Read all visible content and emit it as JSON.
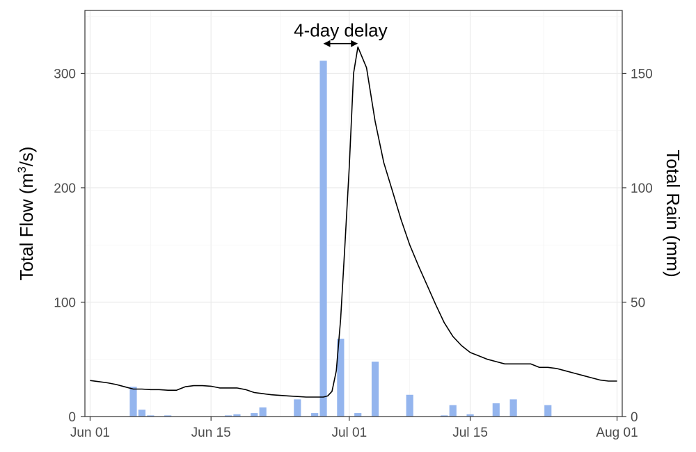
{
  "chart_data": {
    "type": "bar+line",
    "title": "",
    "ylabel_left": {
      "text": "Total Flow (m",
      "sup": "3",
      "tail": "/s)"
    },
    "ylabel_right": "Total Rain (mm)",
    "xlim": [
      -0.6,
      61.6
    ],
    "ylim_left": [
      0,
      355
    ],
    "ylim_right": [
      0,
      177.5
    ],
    "grid": true,
    "x_ticks": [
      {
        "day": 0,
        "label": "Jun 01"
      },
      {
        "day": 14,
        "label": "Jun 15"
      },
      {
        "day": 30,
        "label": "Jul 01"
      },
      {
        "day": 44,
        "label": "Jul 15"
      },
      {
        "day": 61,
        "label": "Aug 01"
      }
    ],
    "y_ticks_left": [
      0,
      100,
      200,
      300
    ],
    "y_ticks_right": [
      0,
      50,
      100,
      150
    ],
    "rain": {
      "name": "Total Rain",
      "color": "#94b5ee",
      "axis": "right",
      "days": [
        5,
        6,
        7,
        9,
        16,
        17,
        19,
        20,
        24,
        26,
        27,
        29,
        31,
        33,
        37,
        41,
        42,
        44,
        47,
        49,
        53
      ],
      "values": [
        13,
        3,
        0.5,
        0.5,
        0.5,
        1,
        1.5,
        4,
        7.5,
        1.5,
        155.5,
        34,
        1.5,
        24,
        9.5,
        0.5,
        5,
        1,
        5.8,
        7.5,
        5
      ]
    },
    "flow": {
      "name": "Total Flow",
      "color": "#000000",
      "axis": "left",
      "days": [
        0,
        1,
        2,
        3,
        4,
        5,
        6,
        7,
        8,
        9,
        10,
        11,
        12,
        13,
        14,
        15,
        16,
        17,
        18,
        19,
        20,
        21,
        22,
        23,
        24,
        25,
        26,
        27,
        27.5,
        28,
        28.5,
        29,
        29.5,
        30,
        30.5,
        31,
        32,
        33,
        34,
        35,
        36,
        37,
        38,
        39,
        40,
        41,
        42,
        43,
        44,
        45,
        46,
        47,
        48,
        49,
        50,
        51,
        52,
        53,
        54,
        55,
        56,
        57,
        58,
        59,
        60,
        61
      ],
      "values": [
        31.5,
        30.5,
        29.5,
        28,
        26,
        24,
        24,
        23.5,
        23.5,
        23,
        23,
        26,
        27,
        27,
        26.5,
        25,
        25,
        25,
        23.5,
        21,
        20,
        19,
        18.5,
        18,
        17.5,
        17,
        17,
        17,
        18,
        22,
        40,
        85,
        150,
        218,
        300,
        323,
        305,
        258,
        222,
        197,
        172,
        150,
        132,
        115,
        98,
        82,
        70,
        62,
        56,
        53,
        50,
        48,
        46,
        46,
        46,
        46,
        43,
        43,
        42,
        40,
        38,
        36,
        34,
        32,
        31,
        31
      ]
    },
    "annotation": {
      "text": "4-day delay",
      "arrow_from_day": 27,
      "arrow_to_day": 31,
      "y": 326
    }
  }
}
